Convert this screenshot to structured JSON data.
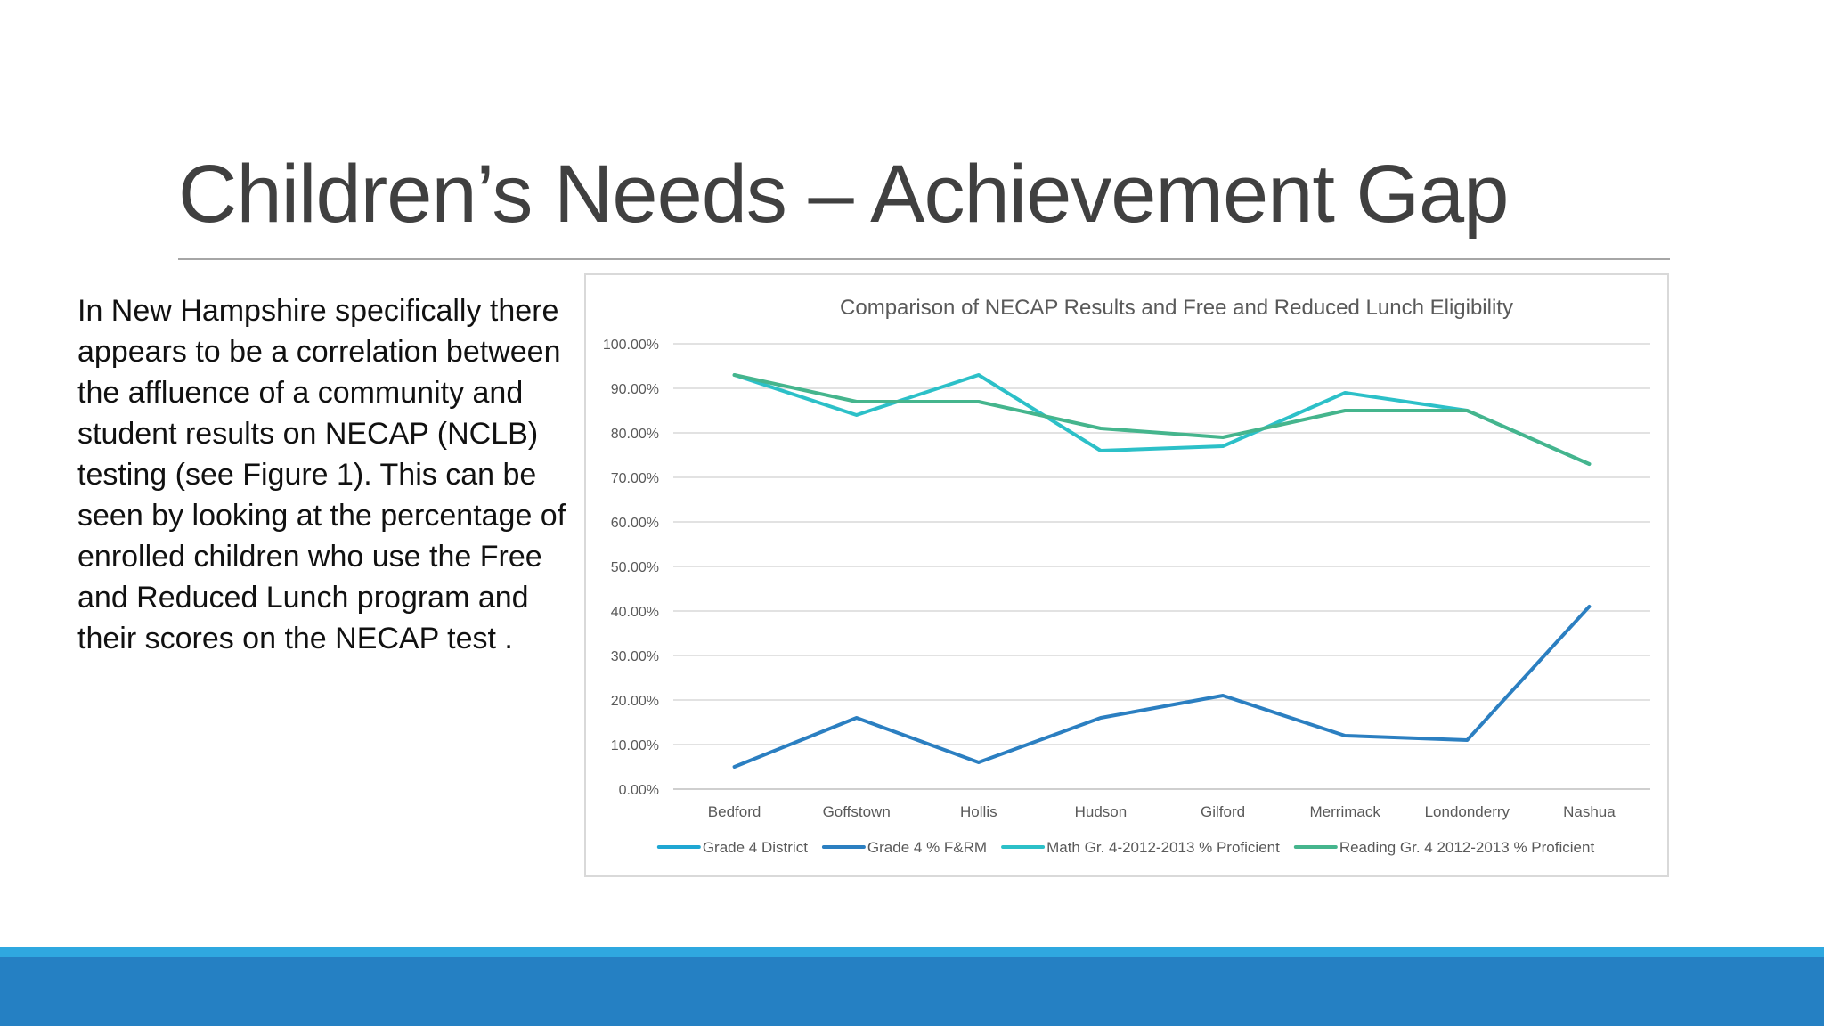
{
  "slide": {
    "title": "Children’s Needs – Achievement Gap",
    "body": "In New Hampshire specifically there appears to be a correlation between the affluence of a community and student results on NECAP (NCLB) testing (see Figure 1). This can be seen by looking at the percentage of enrolled children who use the Free and Reduced Lunch program and their scores on the NECAP test ."
  },
  "colors": {
    "title": "#404040",
    "rule": "#a6a6a6",
    "footer_thin": "#2fa8e0",
    "footer_band": "#2580c3"
  },
  "chart_data": {
    "type": "line",
    "title": "Comparison of NECAP Results and Free and Reduced Lunch Eligibility",
    "categories": [
      "Bedford",
      "Goffstown",
      "Hollis",
      "Hudson",
      "Gilford",
      "Merrimack",
      "Londonderry",
      "Nashua"
    ],
    "ylim": [
      0,
      1
    ],
    "yticks": [
      "0.00%",
      "10.00%",
      "20.00%",
      "30.00%",
      "40.00%",
      "50.00%",
      "60.00%",
      "70.00%",
      "80.00%",
      "90.00%",
      "100.00%"
    ],
    "grid": true,
    "legend_position": "bottom",
    "series": [
      {
        "name": "Grade 4 District",
        "color": "#1fa7d3",
        "values": null
      },
      {
        "name": "Grade 4 % F&RM",
        "color": "#2b7fc1",
        "values": [
          0.05,
          0.16,
          0.06,
          0.16,
          0.21,
          0.12,
          0.11,
          0.41
        ]
      },
      {
        "name": "Math Gr. 4-2012-2013 % Proficient",
        "color": "#2cc0c8",
        "values": [
          0.93,
          0.84,
          0.93,
          0.76,
          0.77,
          0.89,
          0.85,
          0.73
        ]
      },
      {
        "name": "Reading Gr. 4 2012-2013 % Proficient",
        "color": "#45b58d",
        "values": [
          0.93,
          0.87,
          0.87,
          0.81,
          0.79,
          0.85,
          0.85,
          0.73
        ]
      }
    ]
  }
}
